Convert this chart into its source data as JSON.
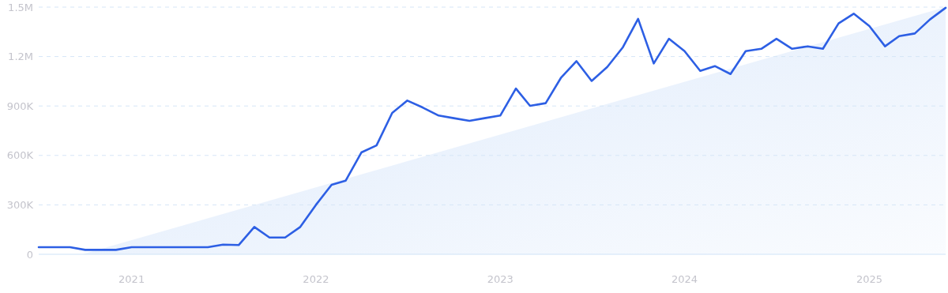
{
  "chart_data": {
    "type": "line",
    "xlim": [
      "2020-07",
      "2025-06"
    ],
    "xticks": [
      {
        "value": "2021-01",
        "label": "2021"
      },
      {
        "value": "2022-01",
        "label": "2022"
      },
      {
        "value": "2023-01",
        "label": "2023"
      },
      {
        "value": "2024-01",
        "label": "2024"
      },
      {
        "value": "2025-01",
        "label": "2025"
      }
    ],
    "ylim": [
      0,
      1500000
    ],
    "yticks": [
      {
        "value": 0,
        "label": "0"
      },
      {
        "value": 300000,
        "label": "300K"
      },
      {
        "value": 600000,
        "label": "600K"
      },
      {
        "value": 900000,
        "label": "900K"
      },
      {
        "value": 1200000,
        "label": "1.2M"
      },
      {
        "value": 1500000,
        "label": "1.5M"
      }
    ],
    "grid": "y",
    "line_style": "solid",
    "marker": "none",
    "series": [
      {
        "type": "area",
        "color": "#dce9fb",
        "x": [
          "2020-09-25",
          "2025-06"
        ],
        "values": [
          0,
          1500000
        ]
      },
      {
        "color": "#2d5fe4",
        "x": [
          "2020-07",
          "2020-08",
          "2020-09",
          "2020-10",
          "2020-11",
          "2020-12",
          "2021-01",
          "2021-02",
          "2021-03",
          "2021-04",
          "2021-05",
          "2021-06",
          "2021-07",
          "2021-08",
          "2021-09",
          "2021-10",
          "2021-11",
          "2021-12",
          "2022-01",
          "2022-02",
          "2022-03",
          "2022-04",
          "2022-05",
          "2022-06",
          "2022-07",
          "2022-08",
          "2022-09",
          "2022-10",
          "2022-11",
          "2022-12",
          "2023-01",
          "2023-02",
          "2023-03",
          "2023-04",
          "2023-05",
          "2023-06",
          "2023-07",
          "2023-08",
          "2023-09",
          "2023-10",
          "2023-11",
          "2023-12",
          "2024-01",
          "2024-02",
          "2024-03",
          "2024-04",
          "2024-05",
          "2024-06",
          "2024-07",
          "2024-08",
          "2024-09",
          "2024-10",
          "2024-11",
          "2024-12",
          "2025-01",
          "2025-02",
          "2025-03",
          "2025-04",
          "2025-05",
          "2025-06"
        ],
        "values": [
          43000,
          43000,
          43000,
          27000,
          27000,
          27000,
          43000,
          43000,
          43000,
          43000,
          43000,
          43000,
          59000,
          56000,
          166000,
          102000,
          102000,
          166000,
          300000,
          422000,
          447000,
          618000,
          661000,
          858000,
          933000,
          890000,
          842000,
          826000,
          810000,
          826000,
          842000,
          1006000,
          901000,
          917000,
          1070000,
          1172000,
          1052000,
          1137000,
          1257000,
          1429000,
          1158000,
          1308000,
          1233000,
          1113000,
          1142000,
          1094000,
          1233000,
          1247000,
          1308000,
          1247000,
          1262000,
          1247000,
          1401000,
          1460000,
          1385000,
          1262000,
          1324000,
          1340000,
          1425000,
          1496000
        ]
      }
    ]
  }
}
